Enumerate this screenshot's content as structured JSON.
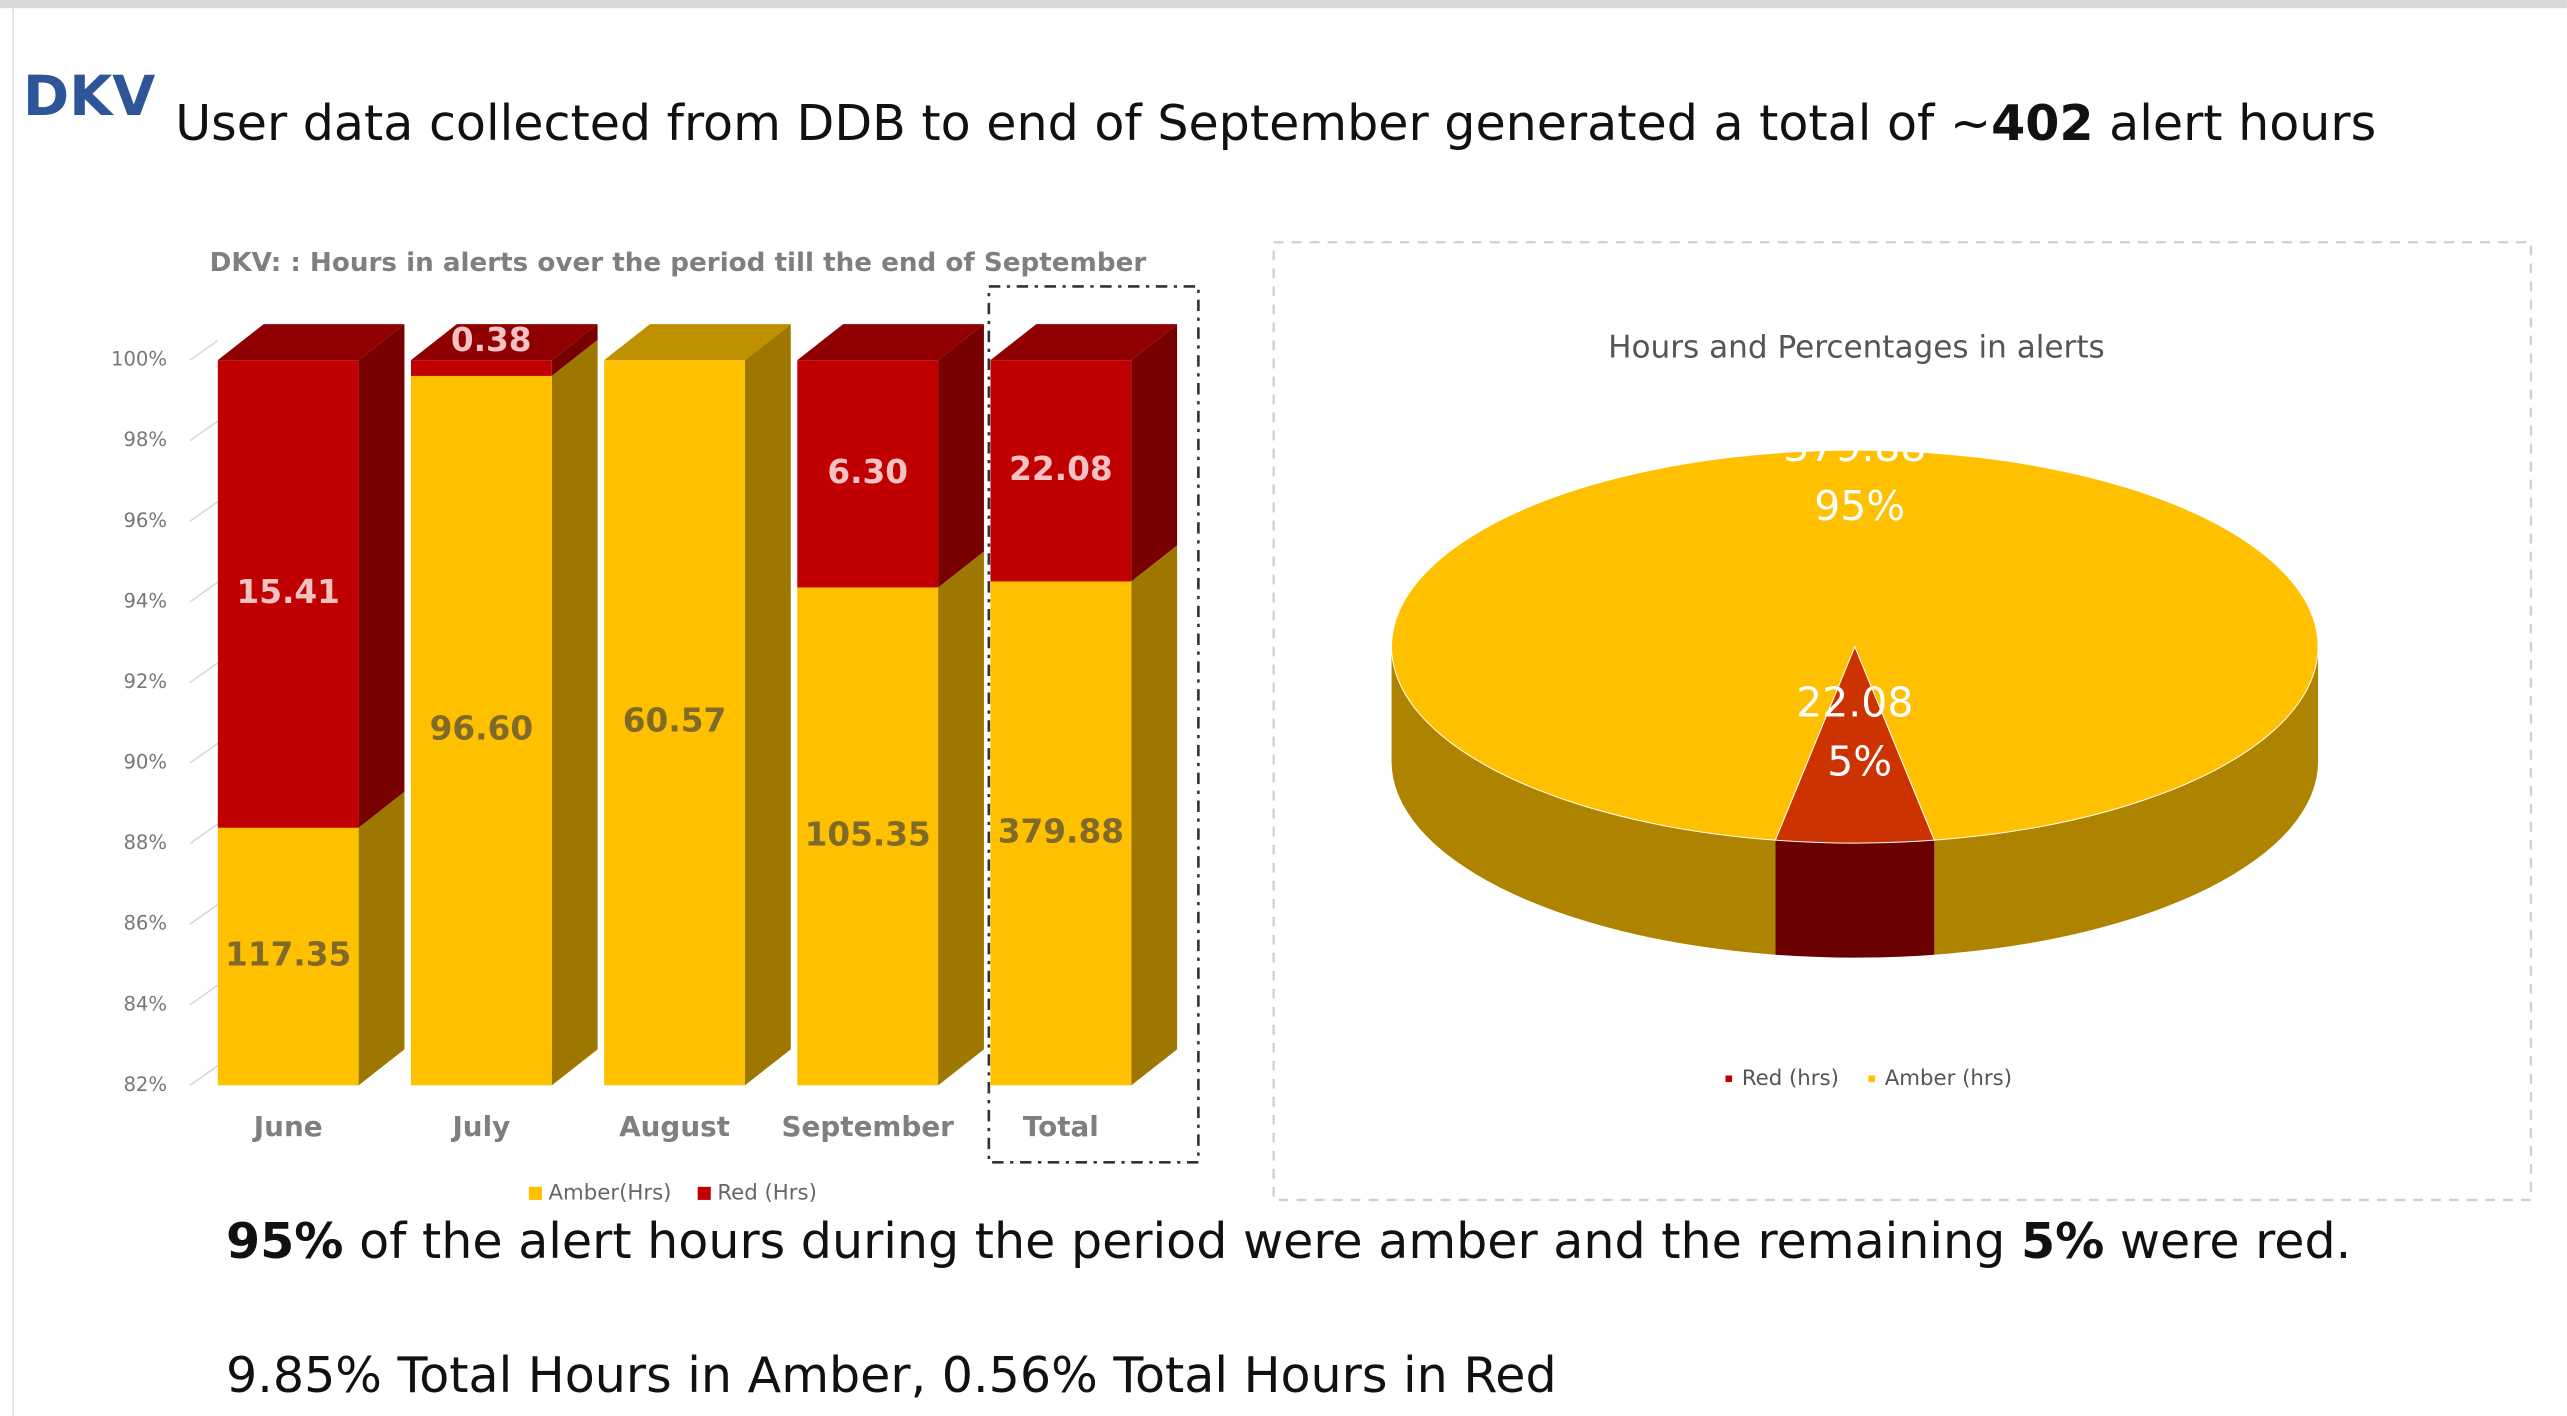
{
  "header": {
    "label": "DKV",
    "title": [
      "User data collected from DDB to end of September generated a total of ~",
      "402",
      " alert hours"
    ]
  },
  "chart_data": [
    {
      "type": "bar3d_stacked_percent",
      "title": "DKV: : Hours in alerts over the period till the end of September",
      "categories": [
        "June",
        "July",
        "August",
        "September",
        "Total"
      ],
      "series": [
        {
          "name": "Amber(Hrs)",
          "color": "#ffc000",
          "label_color": "#7f6a2a",
          "values": [
            117.35,
            96.6,
            60.57,
            105.35,
            379.88
          ],
          "value_labels": [
            "117.35",
            "96.60",
            "60.57",
            "105.35",
            "379.88"
          ]
        },
        {
          "name": "Red (Hrs)",
          "color": "#c00000",
          "label_color": "#f4c2c2",
          "values": [
            15.41,
            0.38,
            0,
            6.3,
            22.08
          ],
          "value_labels": [
            "15.41",
            "0.38",
            null,
            "6.30",
            "22.08"
          ]
        }
      ],
      "ylim": [
        82,
        100
      ],
      "yticks": [
        {
          "value": 82,
          "label": "82%"
        },
        {
          "value": 84,
          "label": "84%"
        },
        {
          "value": 86,
          "label": "86%"
        },
        {
          "value": 88,
          "label": "88%"
        },
        {
          "value": 90,
          "label": "90%"
        },
        {
          "value": 92,
          "label": "92%"
        },
        {
          "value": 94,
          "label": "94%"
        },
        {
          "value": 96,
          "label": "96%"
        },
        {
          "value": 98,
          "label": "98%"
        },
        {
          "value": 100,
          "label": "100%"
        }
      ],
      "legend": "bottom"
    },
    {
      "type": "pie3d",
      "title": "Hours and Percentages in alerts",
      "series": [
        {
          "name": "Red (hrs)",
          "color": "#c00000"
        },
        {
          "name": "Amber (hrs)",
          "color": "#ffc000"
        }
      ],
      "values": [
        22.08,
        379.88
      ],
      "percentages": [
        5,
        95
      ],
      "percentage_labels": [
        "5%",
        "95%"
      ],
      "legend": "bottom"
    }
  ],
  "footer": {
    "summary": [
      "95%",
      " of the alert hours during the period were amber and the remaining ",
      "5%",
      " were red."
    ],
    "note": "9.85% Total Hours in Amber, 0.56% Total Hours in Red"
  }
}
